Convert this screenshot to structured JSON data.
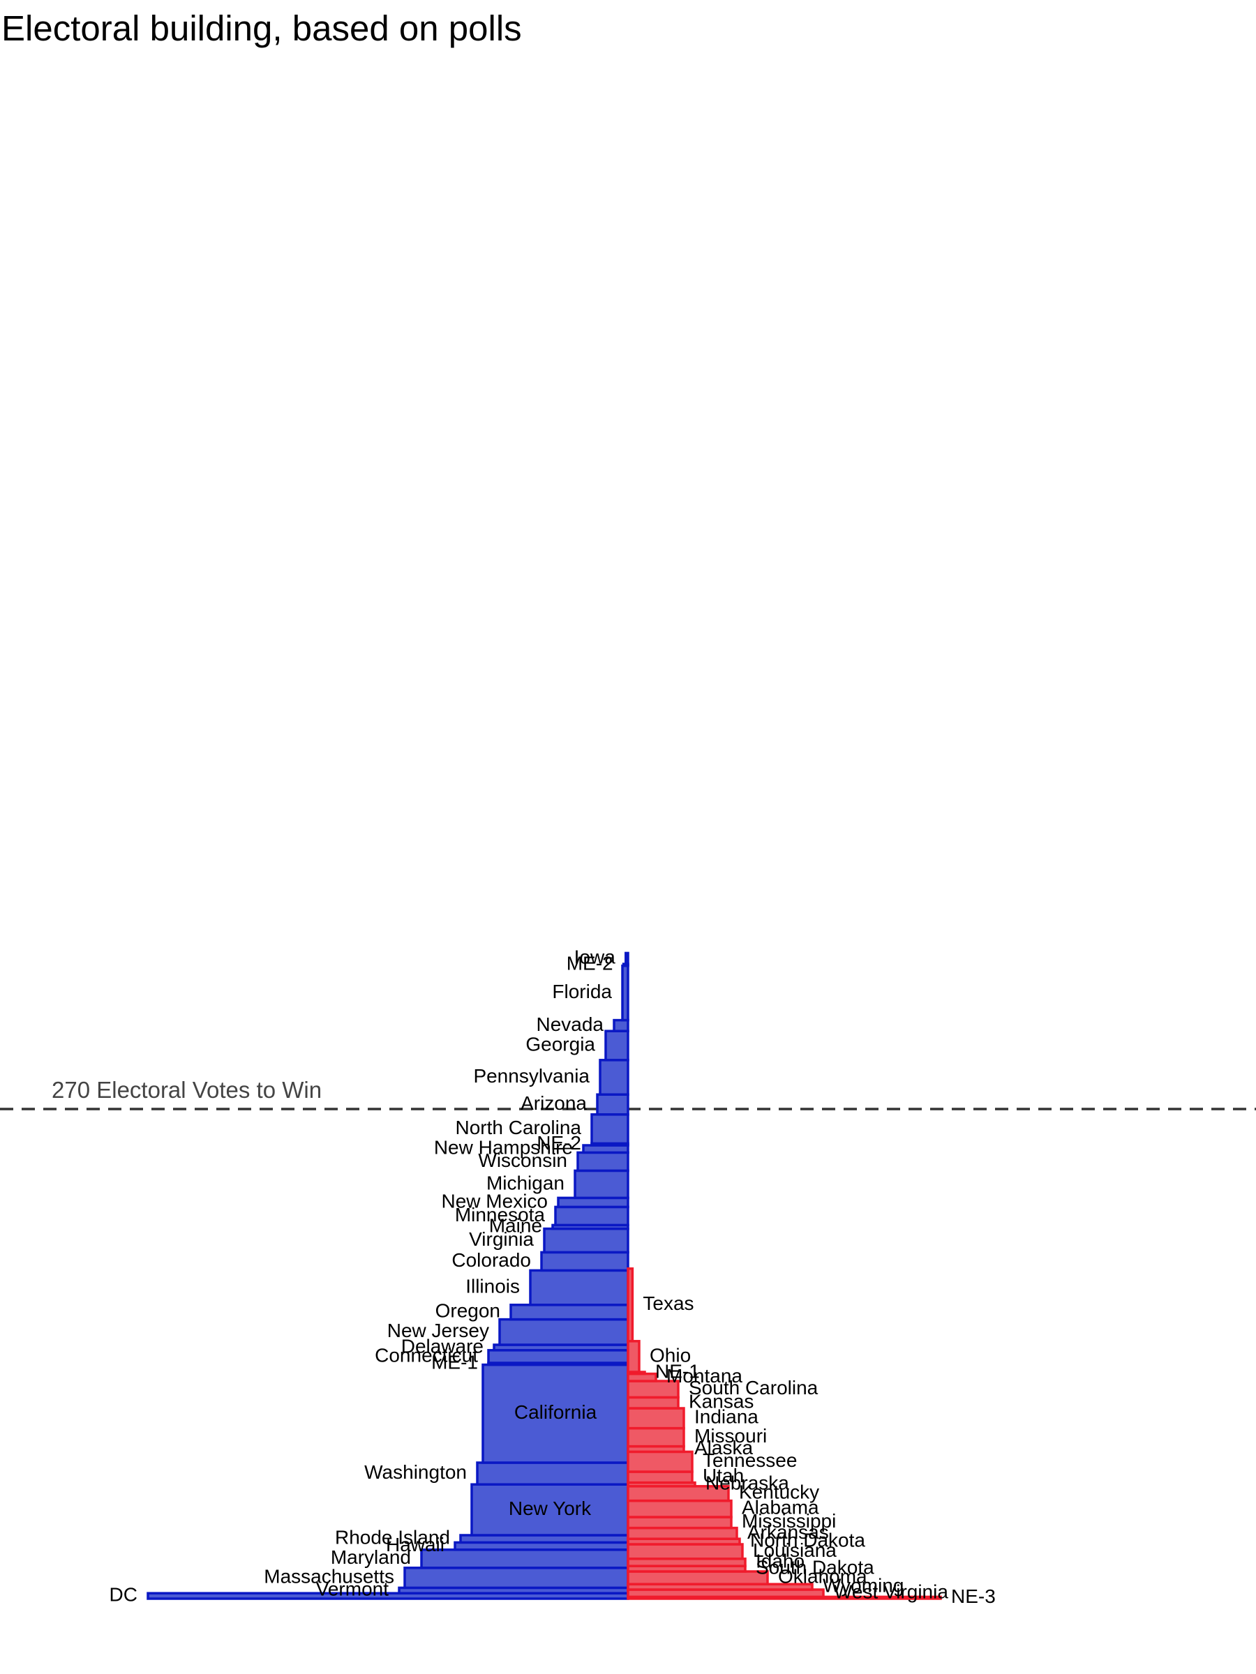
{
  "chart_data": {
    "type": "bar",
    "title": "Electoral building, based on polls",
    "threshold": {
      "label": "270 Electoral Votes to Win",
      "value": 270
    },
    "colors": {
      "dem_fill": "#4B5BD4",
      "dem_edge": "#0A18C4",
      "rep_fill": "#EF5965",
      "rep_edge": "#F01B2C",
      "threshold_line": "#333333"
    },
    "notes": "Stacked from the bottom by cumulative electoral votes; bar width = polling margin (percentage points), Democratic states extend left, Republican states extend right.",
    "dem_states": [
      {
        "name": "DC",
        "ev": 3,
        "margin": 86
      },
      {
        "name": "Vermont",
        "ev": 3,
        "margin": 41
      },
      {
        "name": "Massachusetts",
        "ev": 11,
        "margin": 40
      },
      {
        "name": "Maryland",
        "ev": 10,
        "margin": 37
      },
      {
        "name": "Hawaii",
        "ev": 4,
        "margin": 31
      },
      {
        "name": "Rhode Island",
        "ev": 4,
        "margin": 30
      },
      {
        "name": "New York",
        "ev": 28,
        "margin": 28
      },
      {
        "name": "Washington",
        "ev": 12,
        "margin": 27
      },
      {
        "name": "California",
        "ev": 54,
        "margin": 26
      },
      {
        "name": "ME-1",
        "ev": 1,
        "margin": 25
      },
      {
        "name": "Connecticut",
        "ev": 7,
        "margin": 25
      },
      {
        "name": "Delaware",
        "ev": 3,
        "margin": 24
      },
      {
        "name": "New Jersey",
        "ev": 14,
        "margin": 23
      },
      {
        "name": "Oregon",
        "ev": 8,
        "margin": 21
      },
      {
        "name": "Illinois",
        "ev": 19,
        "margin": 17.5
      },
      {
        "name": "Colorado",
        "ev": 10,
        "margin": 15.5
      },
      {
        "name": "Virginia",
        "ev": 13,
        "margin": 15
      },
      {
        "name": "Maine",
        "ev": 2,
        "margin": 13.5
      },
      {
        "name": "Minnesota",
        "ev": 10,
        "margin": 13
      },
      {
        "name": "New Mexico",
        "ev": 5,
        "margin": 12.5
      },
      {
        "name": "Michigan",
        "ev": 15,
        "margin": 9.5
      },
      {
        "name": "Wisconsin",
        "ev": 10,
        "margin": 9
      },
      {
        "name": "New Hampshire",
        "ev": 4,
        "margin": 8
      },
      {
        "name": "NE-2",
        "ev": 1,
        "margin": 6.5
      },
      {
        "name": "North Carolina",
        "ev": 16,
        "margin": 6.5
      },
      {
        "name": "Arizona",
        "ev": 11,
        "margin": 5.5
      },
      {
        "name": "Pennsylvania",
        "ev": 19,
        "margin": 5
      },
      {
        "name": "Georgia",
        "ev": 16,
        "margin": 4
      },
      {
        "name": "Nevada",
        "ev": 6,
        "margin": 2.5
      },
      {
        "name": "Florida",
        "ev": 30,
        "margin": 1
      },
      {
        "name": "ME-2",
        "ev": 1,
        "margin": 0.8
      },
      {
        "name": "Iowa",
        "ev": 6,
        "margin": 0.4
      }
    ],
    "rep_states": [
      {
        "name": "NE-3",
        "ev": 1,
        "margin": 56
      },
      {
        "name": "West Virginia",
        "ev": 4,
        "margin": 35
      },
      {
        "name": "Wyoming",
        "ev": 3,
        "margin": 33
      },
      {
        "name": "Oklahoma",
        "ev": 7,
        "margin": 25
      },
      {
        "name": "South Dakota",
        "ev": 3,
        "margin": 21
      },
      {
        "name": "Idaho",
        "ev": 4,
        "margin": 21
      },
      {
        "name": "Louisiana",
        "ev": 8,
        "margin": 20.5
      },
      {
        "name": "North Dakota",
        "ev": 3,
        "margin": 20
      },
      {
        "name": "Arkansas",
        "ev": 6,
        "margin": 19.5
      },
      {
        "name": "Mississippi",
        "ev": 6,
        "margin": 18.5
      },
      {
        "name": "Alabama",
        "ev": 9,
        "margin": 18.5
      },
      {
        "name": "Kentucky",
        "ev": 8,
        "margin": 18
      },
      {
        "name": "Nebraska",
        "ev": 2,
        "margin": 12
      },
      {
        "name": "Utah",
        "ev": 6,
        "margin": 11.5
      },
      {
        "name": "Tennessee",
        "ev": 11,
        "margin": 11.5
      },
      {
        "name": "Alaska",
        "ev": 3,
        "margin": 10
      },
      {
        "name": "Missouri",
        "ev": 10,
        "margin": 10
      },
      {
        "name": "Indiana",
        "ev": 11,
        "margin": 10
      },
      {
        "name": "Kansas",
        "ev": 6,
        "margin": 9
      },
      {
        "name": "South Carolina",
        "ev": 9,
        "margin": 9
      },
      {
        "name": "Montana",
        "ev": 4,
        "margin": 5
      },
      {
        "name": "NE-1",
        "ev": 1,
        "margin": 3
      },
      {
        "name": "Ohio",
        "ev": 17,
        "margin": 2
      },
      {
        "name": "Texas",
        "ev": 40,
        "margin": 0.8
      }
    ]
  }
}
